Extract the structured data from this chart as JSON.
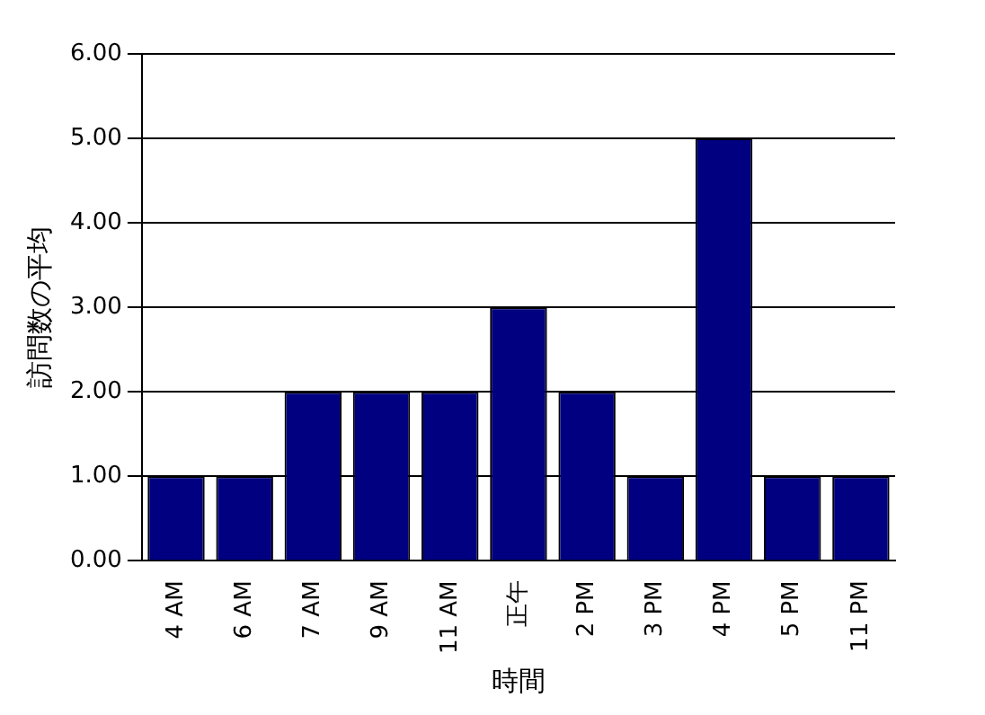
{
  "chart_data": {
    "type": "bar",
    "xlabel": "時間",
    "ylabel": "訪問数の平均",
    "categories": [
      "4 AM",
      "6 AM",
      "7 AM",
      "9 AM",
      "11 AM",
      "正午",
      "2 PM",
      "3 PM",
      "4 PM",
      "5 PM",
      "11 PM"
    ],
    "values": [
      1,
      1,
      2,
      2,
      2,
      3,
      2,
      1,
      5,
      1,
      1
    ],
    "color": "#000080",
    "ylim": [
      0,
      6
    ],
    "yticks": [
      {
        "value": 0,
        "label": "0.00"
      },
      {
        "value": 1,
        "label": "1.00"
      },
      {
        "value": 2,
        "label": "2.00"
      },
      {
        "value": 3,
        "label": "3.00"
      },
      {
        "value": 4,
        "label": "4.00"
      },
      {
        "value": 5,
        "label": "5.00"
      },
      {
        "value": 6,
        "label": "6.00"
      }
    ],
    "grid": "y"
  }
}
